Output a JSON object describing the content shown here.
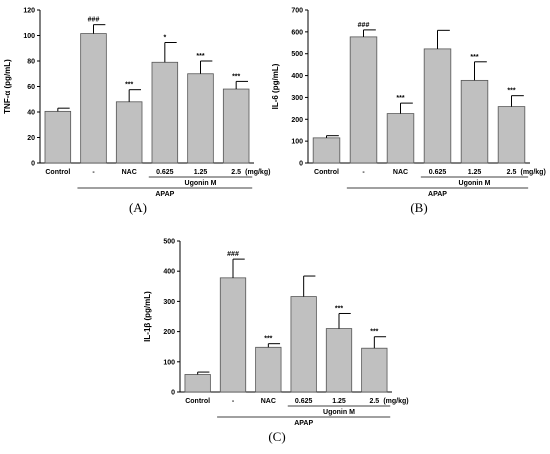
{
  "chart_data": [
    {
      "type": "bar",
      "panel_label": "(A)",
      "ylabel": "TNF-α (pg/mL)",
      "ylim": [
        0,
        120
      ],
      "yticks": [
        "0",
        "20",
        "40",
        "60",
        "80",
        "100",
        "120"
      ],
      "categories": [
        "Control",
        "-",
        "NAC",
        "0.625",
        "1.25",
        "2.5"
      ],
      "unit_label": "(mg/kg)",
      "values": [
        40.5,
        101.5,
        48,
        79,
        70,
        58
      ],
      "errors": [
        2.5,
        7,
        9.5,
        15.5,
        10,
        6
      ],
      "significance": [
        "",
        "###",
        "***",
        "*",
        "***",
        "***"
      ],
      "group_labels": {
        "apap": "APAP",
        "ugonin": "Ugonin M"
      },
      "bar_color": "#c0c0c0"
    },
    {
      "type": "bar",
      "panel_label": "(B)",
      "ylabel": "IL-6 (pg/mL)",
      "ylim": [
        0,
        700
      ],
      "yticks": [
        "0",
        "100",
        "200",
        "300",
        "400",
        "500",
        "600",
        "700"
      ],
      "categories": [
        "Control",
        "-",
        "NAC",
        "0.625",
        "1.25",
        "2.5"
      ],
      "unit_label": "(mg/kg)",
      "values": [
        115,
        577,
        226,
        522,
        378,
        258
      ],
      "errors": [
        10,
        32,
        48,
        85,
        85,
        50
      ],
      "significance": [
        "",
        "###",
        "***",
        "",
        "***",
        "***"
      ],
      "group_labels": {
        "apap": "APAP",
        "ugonin": "Ugonin M"
      },
      "bar_color": "#c0c0c0"
    },
    {
      "type": "bar",
      "panel_label": "(C)",
      "ylabel": "IL-1β (pg/mL)",
      "ylim": [
        0,
        500
      ],
      "yticks": [
        "0",
        "100",
        "200",
        "300",
        "400",
        "500"
      ],
      "categories": [
        "Control",
        "-",
        "NAC",
        "0.625",
        "1.25",
        "2.5"
      ],
      "unit_label": "(mg/kg)",
      "values": [
        58,
        378,
        148,
        316,
        210,
        145
      ],
      "errors": [
        8,
        62,
        12,
        68,
        50,
        38
      ],
      "significance": [
        "",
        "###",
        "***",
        "",
        "***",
        "***"
      ],
      "group_labels": {
        "apap": "APAP",
        "ugonin": "Ugonin M"
      },
      "bar_color": "#c0c0c0"
    }
  ]
}
